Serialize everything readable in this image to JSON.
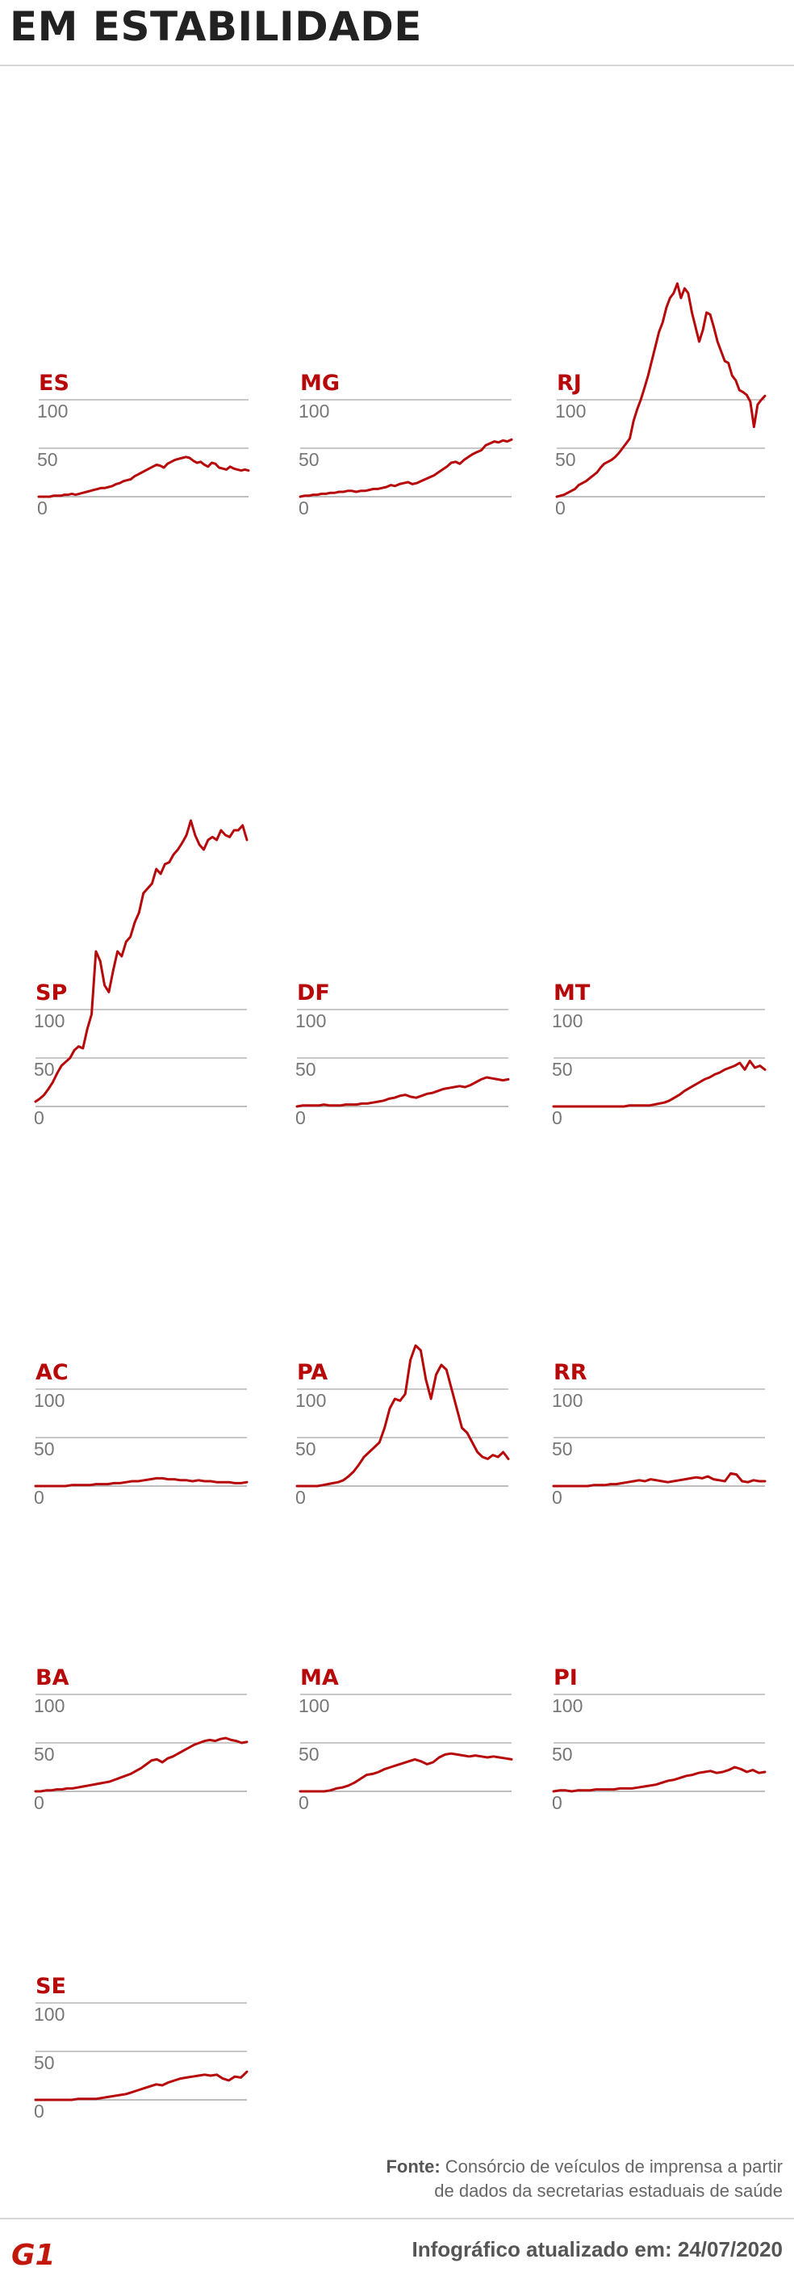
{
  "header": {
    "title": "EM ESTABILIDADE"
  },
  "colors": {
    "line": "#b7080a",
    "state_label": "#b7080a",
    "grid": "#a8a8a8",
    "tick": "#777777"
  },
  "chart_data": [
    {
      "type": "line",
      "title": "ES",
      "yticks": [
        0,
        50,
        100
      ],
      "values": [
        0,
        0,
        0,
        0,
        1,
        1,
        1,
        2,
        2,
        3,
        2,
        3,
        4,
        5,
        6,
        7,
        8,
        9,
        9,
        10,
        11,
        13,
        14,
        16,
        17,
        18,
        21,
        23,
        25,
        27,
        29,
        31,
        33,
        32,
        30,
        34,
        36,
        38,
        39,
        40,
        41,
        40,
        37,
        35,
        36,
        33,
        31,
        35,
        34,
        30,
        29,
        28,
        31,
        29,
        28,
        27,
        28,
        27
      ]
    },
    {
      "type": "line",
      "title": "MG",
      "yticks": [
        0,
        50,
        100
      ],
      "values": [
        0,
        1,
        1,
        2,
        2,
        3,
        3,
        4,
        4,
        5,
        5,
        6,
        6,
        5,
        6,
        6,
        7,
        8,
        8,
        9,
        10,
        12,
        11,
        13,
        14,
        15,
        13,
        14,
        16,
        18,
        20,
        22,
        25,
        28,
        31,
        35,
        36,
        34,
        38,
        41,
        44,
        46,
        48,
        53,
        55,
        57,
        56,
        58,
        57,
        59
      ]
    },
    {
      "type": "line",
      "title": "RJ",
      "yticks": [
        0,
        50,
        100
      ],
      "values": [
        0,
        1,
        2,
        4,
        6,
        8,
        12,
        14,
        16,
        19,
        22,
        25,
        30,
        34,
        36,
        38,
        41,
        45,
        50,
        55,
        60,
        78,
        90,
        100,
        112,
        125,
        140,
        155,
        170,
        180,
        195,
        205,
        210,
        220,
        205,
        215,
        210,
        190,
        175,
        160,
        172,
        190,
        188,
        175,
        160,
        150,
        140,
        138,
        125,
        120,
        110,
        108,
        105,
        98,
        72,
        95,
        100,
        104
      ]
    },
    {
      "type": "line",
      "title": "SP",
      "yticks": [
        0,
        50,
        100
      ],
      "values": [
        5,
        8,
        12,
        18,
        25,
        34,
        42,
        46,
        50,
        58,
        62,
        60,
        80,
        95,
        160,
        150,
        125,
        118,
        140,
        160,
        155,
        170,
        175,
        190,
        200,
        220,
        225,
        230,
        245,
        240,
        250,
        252,
        260,
        265,
        272,
        280,
        295,
        280,
        270,
        265,
        275,
        278,
        275,
        285,
        280,
        278,
        285,
        285,
        290,
        275
      ]
    },
    {
      "type": "line",
      "title": "DF",
      "yticks": [
        0,
        50,
        100
      ],
      "values": [
        0,
        1,
        1,
        1,
        1,
        2,
        1,
        1,
        1,
        2,
        2,
        2,
        3,
        3,
        4,
        5,
        6,
        8,
        9,
        11,
        12,
        10,
        9,
        11,
        13,
        14,
        16,
        18,
        19,
        20,
        21,
        20,
        22,
        25,
        28,
        30,
        29,
        28,
        27,
        28
      ]
    },
    {
      "type": "line",
      "title": "MT",
      "yticks": [
        0,
        50,
        100
      ],
      "values": [
        0,
        0,
        0,
        0,
        0,
        0,
        0,
        0,
        0,
        0,
        0,
        0,
        0,
        0,
        0,
        1,
        1,
        1,
        1,
        1,
        2,
        3,
        4,
        6,
        9,
        12,
        16,
        19,
        22,
        25,
        28,
        30,
        33,
        35,
        38,
        40,
        42,
        45,
        38,
        47,
        40,
        42,
        38
      ]
    },
    {
      "type": "line",
      "title": "AC",
      "yticks": [
        0,
        50,
        100
      ],
      "values": [
        0,
        0,
        0,
        0,
        0,
        0,
        1,
        1,
        1,
        1,
        2,
        2,
        2,
        3,
        3,
        4,
        5,
        5,
        6,
        7,
        8,
        8,
        7,
        7,
        6,
        6,
        5,
        6,
        5,
        5,
        4,
        4,
        4,
        3,
        3,
        4
      ]
    },
    {
      "type": "line",
      "title": "PA",
      "yticks": [
        0,
        50,
        100
      ],
      "values": [
        0,
        0,
        0,
        0,
        0,
        1,
        2,
        3,
        4,
        6,
        10,
        15,
        22,
        30,
        35,
        40,
        45,
        60,
        80,
        90,
        88,
        95,
        130,
        145,
        140,
        110,
        90,
        115,
        125,
        120,
        100,
        80,
        60,
        55,
        45,
        35,
        30,
        28,
        32,
        30,
        35,
        28
      ]
    },
    {
      "type": "line",
      "title": "RR",
      "yticks": [
        0,
        50,
        100
      ],
      "values": [
        0,
        0,
        0,
        0,
        0,
        0,
        0,
        1,
        1,
        1,
        2,
        2,
        3,
        4,
        5,
        6,
        5,
        7,
        6,
        5,
        4,
        5,
        6,
        7,
        8,
        9,
        8,
        10,
        7,
        6,
        5,
        13,
        12,
        5,
        4,
        6,
        5,
        5
      ]
    },
    {
      "type": "line",
      "title": "BA",
      "yticks": [
        0,
        50,
        100
      ],
      "values": [
        0,
        0,
        1,
        1,
        2,
        2,
        3,
        3,
        4,
        5,
        6,
        7,
        8,
        9,
        10,
        12,
        14,
        16,
        18,
        21,
        24,
        28,
        32,
        33,
        30,
        34,
        36,
        39,
        42,
        45,
        48,
        50,
        52,
        53,
        52,
        54,
        55,
        53,
        52,
        50,
        51
      ]
    },
    {
      "type": "line",
      "title": "MA",
      "yticks": [
        0,
        50,
        100
      ],
      "values": [
        0,
        0,
        0,
        0,
        0,
        1,
        3,
        4,
        6,
        9,
        13,
        17,
        18,
        20,
        23,
        25,
        27,
        29,
        31,
        33,
        31,
        28,
        30,
        35,
        38,
        39,
        38,
        37,
        36,
        37,
        36,
        35,
        36,
        35,
        34,
        33
      ]
    },
    {
      "type": "line",
      "title": "PI",
      "yticks": [
        0,
        50,
        100
      ],
      "values": [
        0,
        1,
        1,
        0,
        1,
        1,
        1,
        2,
        2,
        2,
        2,
        3,
        3,
        3,
        4,
        5,
        6,
        7,
        9,
        11,
        12,
        14,
        16,
        17,
        19,
        20,
        21,
        19,
        20,
        22,
        25,
        23,
        20,
        22,
        19,
        20
      ]
    },
    {
      "type": "line",
      "title": "SE",
      "yticks": [
        0,
        50,
        100
      ],
      "values": [
        0,
        0,
        0,
        0,
        0,
        0,
        0,
        1,
        1,
        1,
        1,
        2,
        3,
        4,
        5,
        6,
        8,
        10,
        12,
        14,
        16,
        15,
        18,
        20,
        22,
        23,
        24,
        25,
        26,
        25,
        26,
        22,
        20,
        24,
        23,
        29
      ]
    }
  ],
  "footer": {
    "source_label": "Fonte:",
    "source_line1": "Consórcio de veículos de imprensa a partir",
    "source_line2": "de dados da secretarias estaduais de saúde",
    "updated": "Infográfico atualizado em: 24/07/2020",
    "logo_text": "G1"
  }
}
